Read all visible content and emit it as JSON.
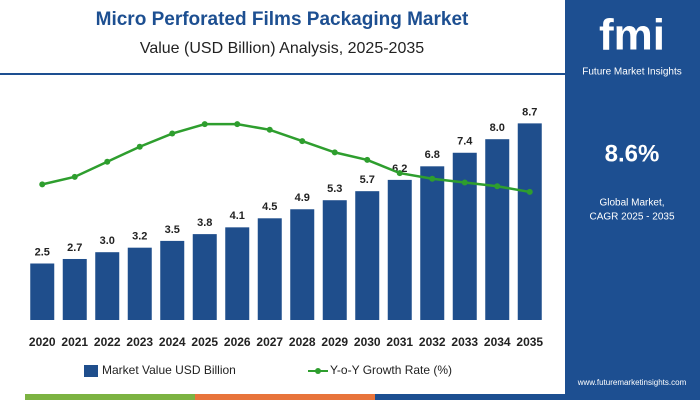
{
  "chart_data": {
    "type": "bar",
    "title": "Micro Perforated Films Packaging Market",
    "subtitle": "Value (USD Billion) Analysis, 2025-2035",
    "categories": [
      "2020",
      "2021",
      "2022",
      "2023",
      "2024",
      "2025",
      "2026",
      "2027",
      "2028",
      "2029",
      "2030",
      "2031",
      "2032",
      "2033",
      "2034",
      "2035"
    ],
    "series": [
      {
        "name": "Market Value USD Billion",
        "color": "#1f4e8c",
        "values": [
          2.5,
          2.7,
          3.0,
          3.2,
          3.5,
          3.8,
          4.1,
          4.5,
          4.9,
          5.3,
          5.7,
          6.2,
          6.8,
          7.4,
          8.0,
          8.7
        ],
        "value_labels": [
          "2.5",
          "2.7",
          "3.0",
          "3.2",
          "3.5",
          "3.8",
          "4.1",
          "4.5",
          "4.9",
          "5.3",
          "5.7",
          "6.2",
          "6.8",
          "7.4",
          "8.0",
          "8.7"
        ]
      },
      {
        "name": "Y-o-Y Growth Rate (%)",
        "color": "#2e9e2e",
        "axis": "y2",
        "values": [
          7.2,
          7.6,
          8.4,
          9.2,
          9.9,
          10.4,
          10.4,
          10.1,
          9.5,
          8.9,
          8.5,
          7.8,
          7.5,
          7.3,
          7.1,
          6.8
        ]
      }
    ],
    "ylim": [
      0,
      10
    ],
    "y2lim": [
      0,
      12
    ]
  },
  "panel": {
    "logo": "fmi",
    "brand": "Future Market Insights",
    "cagr": "8.6%",
    "caption_line1": "Global Market,",
    "caption_line2": "CAGR 2025 - 2035",
    "website": "www.futuremarketinsights.com"
  }
}
